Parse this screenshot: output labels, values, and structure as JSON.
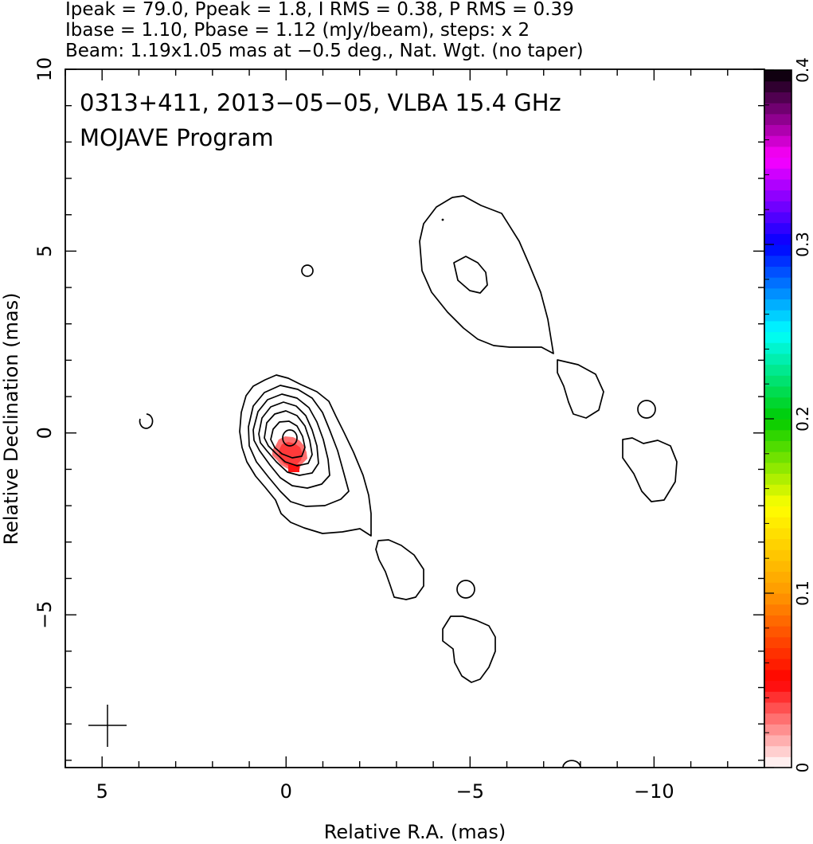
{
  "header": {
    "line1": "Ipeak = 79.0, Ppeak = 1.8, I RMS = 0.38, P RMS = 0.39",
    "line2": "Ibase = 1.10, Pbase = 1.12 (mJy/beam), steps: x 2",
    "line3": "Beam: 1.19x1.05 mas at −0.5 deg., Nat. Wgt. (no taper)"
  },
  "chart_data": {
    "type": "contour",
    "title_line1": "0313+411, 2013−05−05, VLBA 15.4 GHz",
    "title_line2": "MOJAVE Program",
    "xlabel": "Relative R.A. (mas)",
    "ylabel": "Relative Declination (mas)",
    "xlim": [
      6.0,
      -13.0
    ],
    "ylim": [
      -9.2,
      10.0
    ],
    "x_axis_reversed": true,
    "xticks": [
      5,
      0,
      -5,
      -10
    ],
    "xtick_labels": [
      "5",
      "0",
      "−5",
      "−10"
    ],
    "yticks": [
      10,
      5,
      0,
      -5
    ],
    "ytick_labels": [
      "10",
      "5",
      "0",
      "−5"
    ],
    "colorbar": {
      "label_ticks": [
        "0",
        "0.1",
        "0.2",
        "0.3",
        "0.4"
      ],
      "values": [
        0,
        0.1,
        0.2,
        0.3,
        0.4
      ],
      "range": [
        0,
        0.4
      ],
      "colors": [
        "#ffffff",
        "#ff0000",
        "#ff9900",
        "#ffff00",
        "#00cc00",
        "#00ffff",
        "#0000ff",
        "#ff00ff",
        "#000000"
      ]
    },
    "polarization_region": {
      "center_x": -0.1,
      "center_y": -0.6,
      "color": "#ff2a2a"
    },
    "beam_marker": {
      "x": 5.0,
      "y": -8.1
    },
    "grid": false,
    "legend": "none"
  }
}
